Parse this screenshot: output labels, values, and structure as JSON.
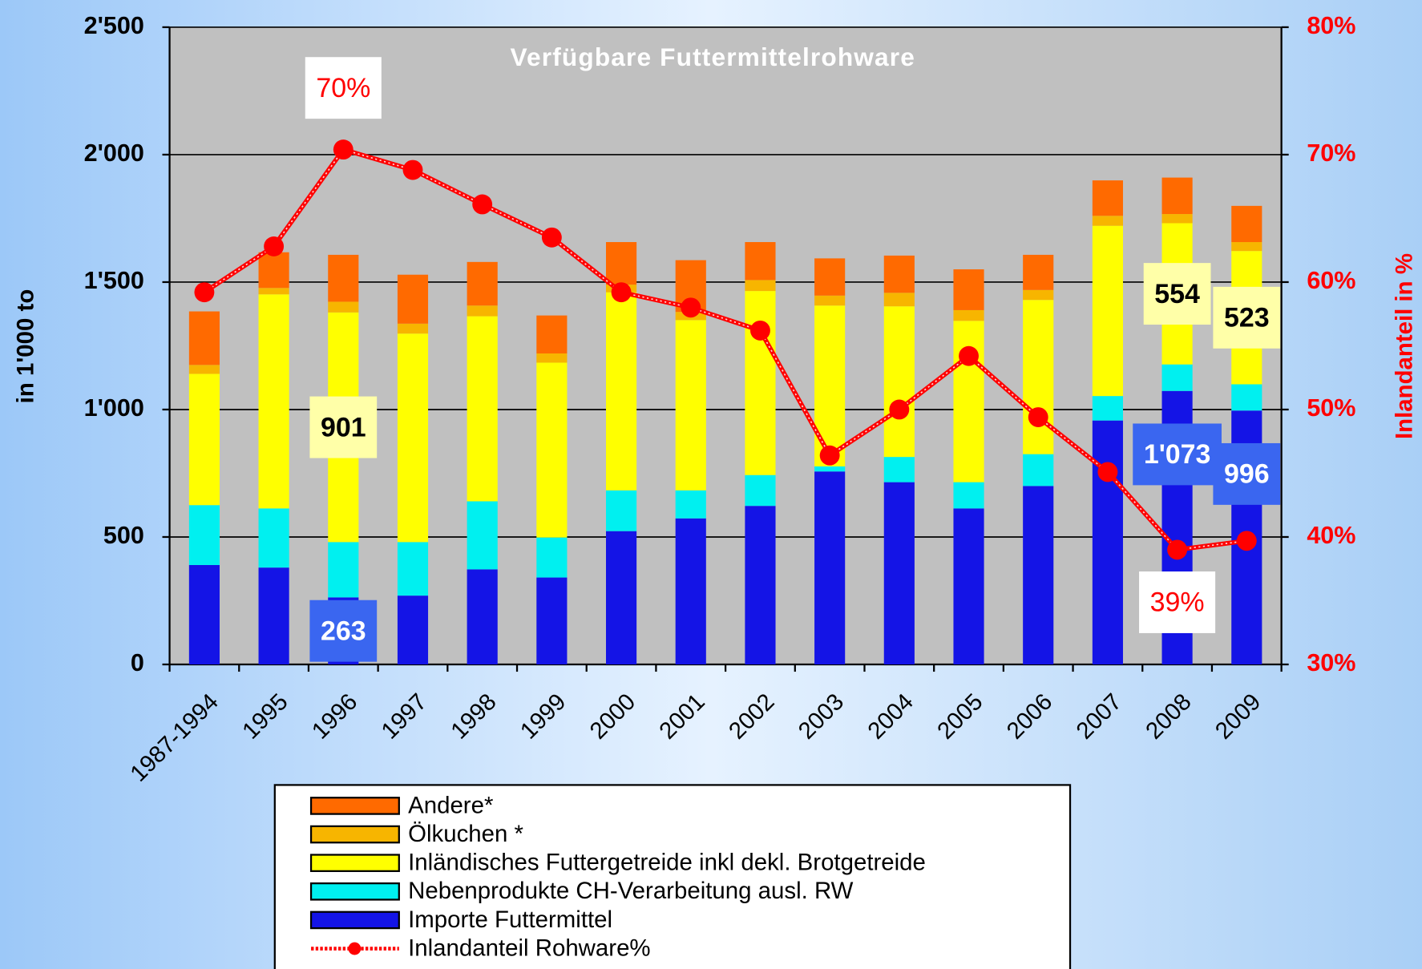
{
  "chart_data": {
    "type": "stacked_bar_line",
    "title": "Verfügbare Futtermittelrohware",
    "y_label": "in 1'000 to",
    "y2_label": "Inlandanteil in %",
    "categories": [
      "1987-1994",
      "1995",
      "1996",
      "1997",
      "1998",
      "1999",
      "2000",
      "2001",
      "2002",
      "2003",
      "2004",
      "2005",
      "2006",
      "2007",
      "2008",
      "2009"
    ],
    "ylim": [
      0,
      2500
    ],
    "yticks": [
      0,
      500,
      {
        "value": 1000,
        "label": "1'000"
      },
      {
        "value": 1500,
        "label": "1'500"
      },
      {
        "value": 2000,
        "label": "2'000"
      },
      {
        "value": 2500,
        "label": "2'500"
      }
    ],
    "y2lim": [
      30,
      80
    ],
    "y2ticks": [
      {
        "value": 30,
        "label": "30%"
      },
      {
        "value": 40,
        "label": "40%"
      },
      {
        "value": 50,
        "label": "50%"
      },
      {
        "value": 60,
        "label": "60%"
      },
      {
        "value": 70,
        "label": "70%"
      },
      {
        "value": 80,
        "label": "80%"
      }
    ],
    "grid": true,
    "series": [
      {
        "name": "Importe Futtermittel",
        "color": "#1414e6",
        "values": [
          390,
          380,
          263,
          270,
          373,
          341,
          523,
          573,
          622,
          757,
          715,
          612,
          700,
          957,
          1073,
          996
        ],
        "value_labels": [
          null,
          null,
          "263",
          null,
          null,
          null,
          null,
          null,
          null,
          null,
          null,
          null,
          null,
          null,
          "1'073",
          "996"
        ]
      },
      {
        "name": "Nebenprodukte CH-Verarbeitung ausl. RW",
        "color": "#00f0f0",
        "values": [
          235,
          232,
          217,
          210,
          267,
          157,
          160,
          110,
          121,
          20,
          99,
          103,
          125,
          96,
          104,
          103
        ]
      },
      {
        "name": "Inländisches Futtergetreide inkl dekl. Brotgetreide",
        "color": "#ffff00",
        "values": [
          515,
          840,
          901,
          818,
          726,
          686,
          777,
          668,
          722,
          631,
          591,
          633,
          605,
          668,
          554,
          523
        ],
        "value_labels": [
          null,
          null,
          "901",
          null,
          null,
          null,
          null,
          null,
          null,
          null,
          null,
          null,
          null,
          null,
          "554",
          "523"
        ]
      },
      {
        "name": "Ölkuchen *",
        "color": "#f7b500",
        "values": [
          35,
          25,
          42,
          39,
          42,
          36,
          30,
          32,
          43,
          39,
          53,
          42,
          39,
          39,
          36,
          35
        ]
      },
      {
        "name": "Andere*",
        "color": "#ff6a00",
        "values": [
          210,
          140,
          184,
          192,
          171,
          149,
          167,
          203,
          149,
          146,
          146,
          160,
          138,
          139,
          143,
          142
        ]
      },
      {
        "name": "Inlandanteil Rohware%",
        "color": "#ff0000",
        "axis": "y2",
        "values": [
          59.2,
          62.8,
          70.4,
          68.8,
          66.1,
          63.5,
          59.2,
          58.0,
          56.2,
          46.4,
          50.0,
          54.2,
          49.4,
          45.1,
          39.0,
          39.7
        ],
        "value_labels": [
          null,
          null,
          "70%",
          null,
          null,
          null,
          null,
          null,
          null,
          null,
          null,
          null,
          null,
          null,
          "39%",
          null
        ]
      }
    ]
  }
}
